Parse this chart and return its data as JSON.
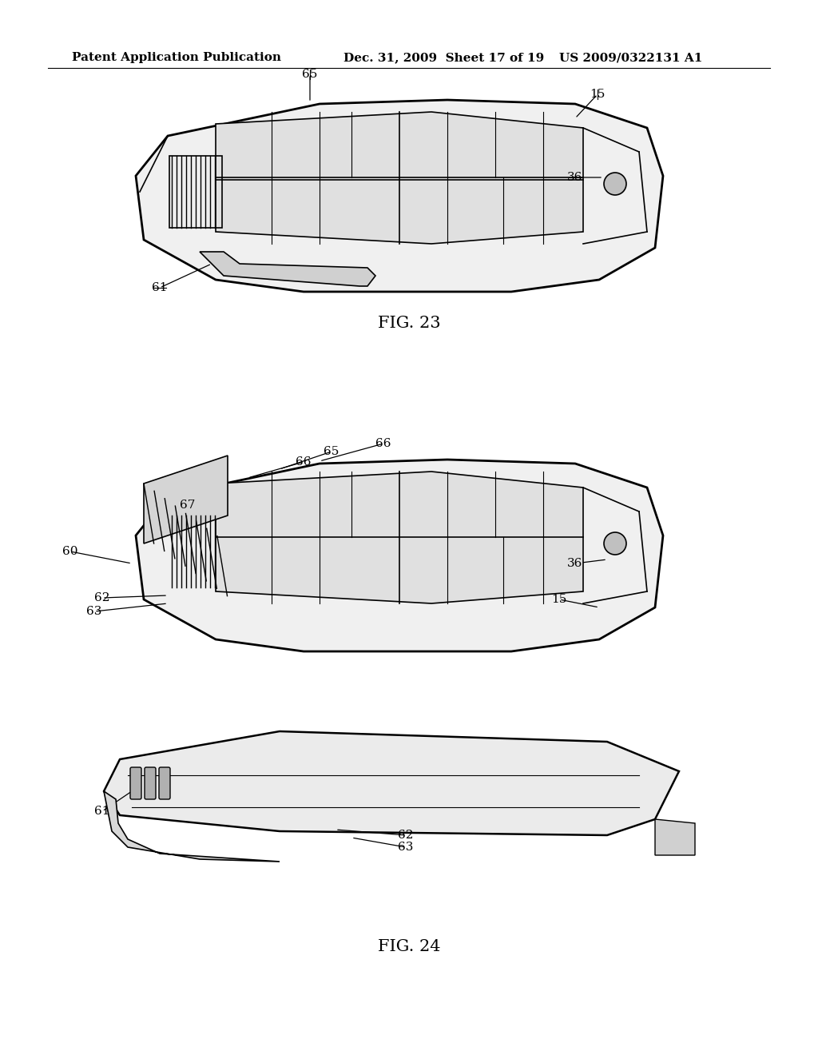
{
  "background_color": "#ffffff",
  "header_left": "Patent Application Publication",
  "header_mid": "Dec. 31, 2009  Sheet 17 of 19",
  "header_right": "US 2009/0322131 A1",
  "fig23_label": "FIG. 23",
  "fig24_label": "FIG. 24",
  "header_fontsize": 11,
  "fig_label_fontsize": 15
}
